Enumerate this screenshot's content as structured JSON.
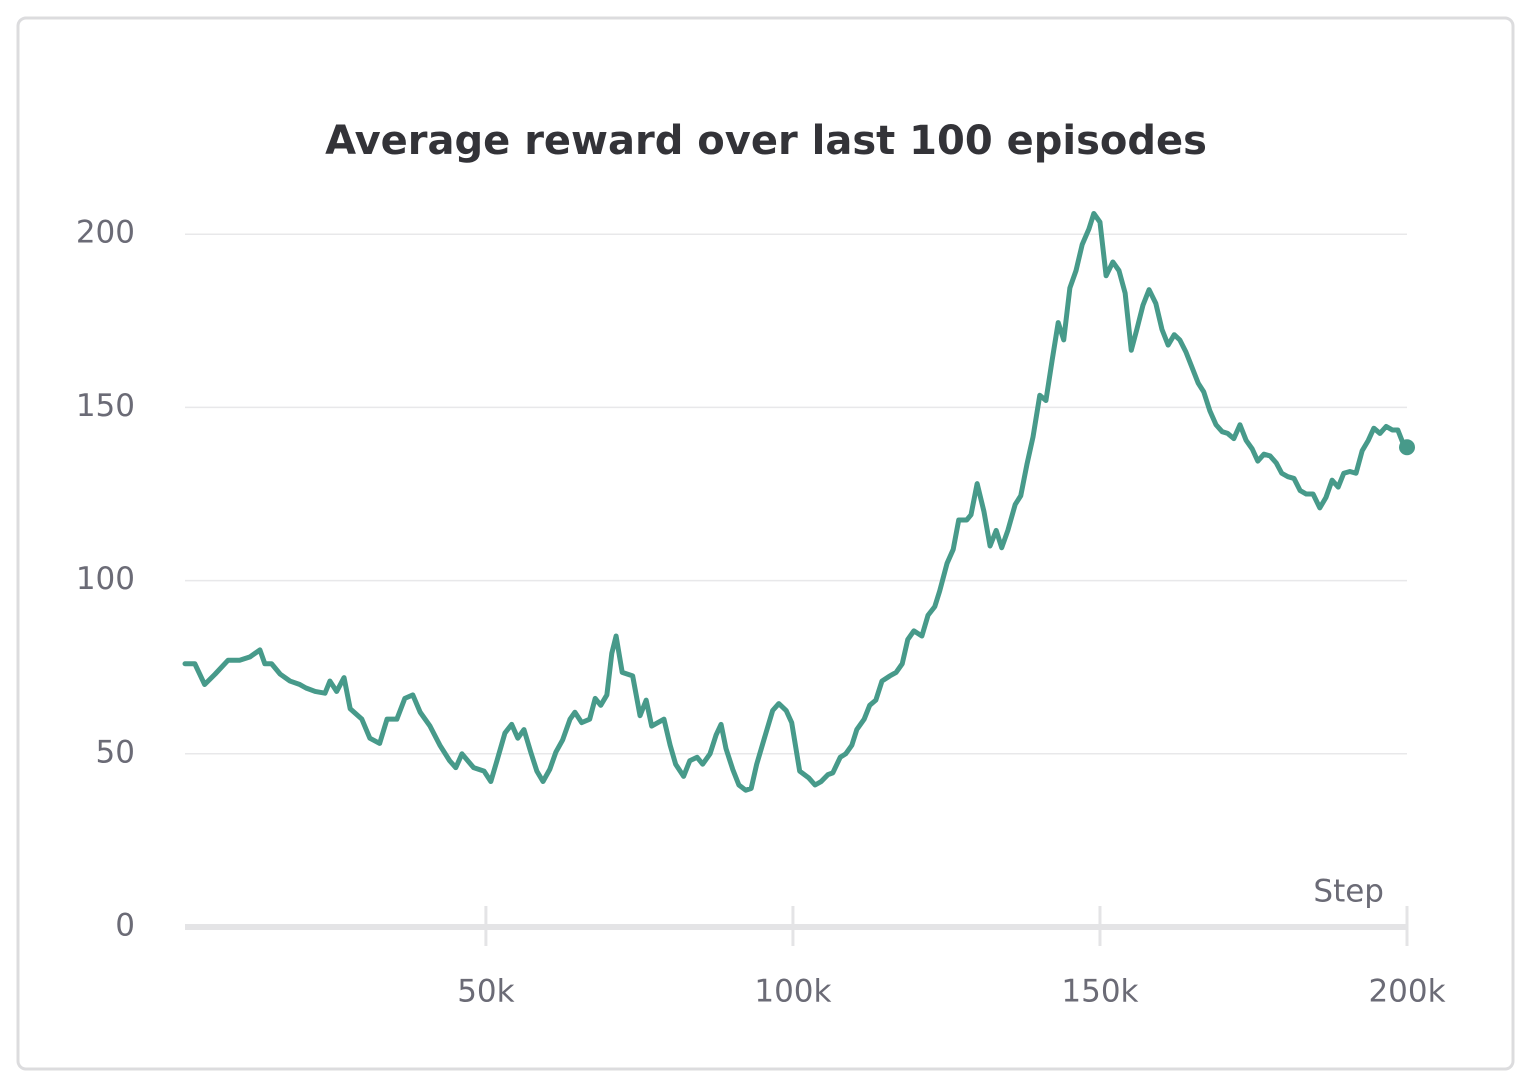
{
  "chart_data": {
    "type": "line",
    "title": "Average reward over last 100 episodes",
    "x_label": "Step",
    "color": "#479a8a",
    "grid": true,
    "xlim": [
      1000,
      200000
    ],
    "xticks": [
      {
        "value": 50000,
        "label": "50k"
      },
      {
        "value": 100000,
        "label": "100k"
      },
      {
        "value": 150000,
        "label": "150k"
      },
      {
        "value": 200000,
        "label": "200k"
      }
    ],
    "ylim": [
      0,
      207
    ],
    "yticks": [
      0,
      50,
      100,
      150,
      200
    ],
    "x": [
      1000,
      2600,
      4200,
      5900,
      8000,
      9900,
      11600,
      13200,
      14000,
      15100,
      16500,
      18100,
      19700,
      20700,
      22200,
      23800,
      24600,
      25700,
      26900,
      27900,
      29800,
      31100,
      32700,
      33900,
      35500,
      36800,
      38100,
      39300,
      40900,
      42500,
      44100,
      45100,
      46100,
      48000,
      49700,
      50800,
      51800,
      53100,
      54200,
      55200,
      56200,
      57300,
      58300,
      59300,
      60400,
      61400,
      62500,
      63700,
      64500,
      65600,
      66900,
      67800,
      68700,
      69700,
      70500,
      71200,
      72200,
      73900,
      75100,
      76100,
      77000,
      79000,
      80000,
      80900,
      82200,
      83200,
      84400,
      85300,
      86500,
      87500,
      88300,
      89100,
      90200,
      91200,
      92300,
      93200,
      94100,
      95600,
      96700,
      97700,
      98900,
      99800,
      101100,
      102600,
      103600,
      104600,
      105700,
      106500,
      107700,
      108600,
      109600,
      110400,
      111600,
      112500,
      113500,
      114500,
      115800,
      116800,
      117800,
      118700,
      119700,
      121000,
      122000,
      123100,
      123900,
      125100,
      126100,
      127000,
      128300,
      129000,
      130000,
      131100,
      132100,
      133100,
      134000,
      135000,
      136200,
      137100,
      138100,
      139100,
      140200,
      141200,
      142200,
      143200,
      144100,
      145100,
      146100,
      147100,
      148200,
      149000,
      150000,
      151000,
      152100,
      153100,
      154100,
      155100,
      156000,
      157000,
      158000,
      159100,
      160100,
      161100,
      162100,
      163000,
      164000,
      165000,
      166000,
      166900,
      167900,
      168900,
      169900,
      170800,
      171800,
      172800,
      173800,
      174800,
      175700,
      176700,
      177700,
      178700,
      179600,
      180600,
      181600,
      182600,
      183600,
      184700,
      185800,
      186800,
      187800,
      188800,
      189700,
      190700,
      191700,
      192700,
      193700,
      194600,
      195600,
      196600,
      197600,
      198500,
      199500,
      200000
    ],
    "values": [
      76,
      76,
      70,
      73,
      77,
      77,
      78,
      80,
      76,
      76,
      73,
      71,
      70,
      69,
      68,
      67.5,
      71,
      68,
      72,
      63,
      60,
      54.5,
      53,
      60,
      60,
      66,
      67,
      62,
      58,
      52.5,
      48,
      46,
      50,
      46,
      45,
      42,
      48,
      56,
      58.5,
      54.5,
      57,
      50.5,
      45,
      42,
      45.5,
      50.5,
      54,
      60,
      62,
      59,
      60,
      66,
      64,
      67,
      79,
      84,
      73.5,
      72.5,
      61,
      65.5,
      58,
      60,
      52.5,
      47,
      43.5,
      48,
      49,
      47,
      50,
      55.5,
      58.5,
      51.5,
      45.5,
      41,
      39.5,
      40,
      47,
      56,
      62.5,
      64.5,
      62.5,
      59,
      45,
      43,
      41,
      42,
      44,
      44.5,
      49,
      50,
      52.5,
      57,
      60,
      64,
      65.5,
      71,
      72.5,
      73.5,
      76,
      83,
      85.5,
      84,
      90,
      92.5,
      97,
      105,
      109,
      117.5,
      117.5,
      119,
      128,
      120,
      110,
      114.5,
      109.5,
      114.5,
      122,
      124.5,
      133.5,
      141.5,
      153.5,
      152,
      163.5,
      174.5,
      169.5,
      184.5,
      189.5,
      197,
      201.5,
      206,
      203.5,
      188,
      192,
      189.5,
      183,
      166.5,
      172.5,
      179.5,
      184,
      180,
      172.5,
      168,
      171,
      169.5,
      166,
      161.5,
      157,
      154.5,
      149,
      145,
      143,
      142.5,
      141,
      145,
      140.5,
      138,
      134.5,
      136.5,
      136,
      134,
      131,
      130,
      129.5,
      126,
      125,
      125,
      121,
      124,
      129,
      127,
      131,
      131.5,
      131,
      137.5,
      140.5,
      144,
      142.5,
      144.5,
      143.5,
      143.5,
      139,
      138.5
    ]
  }
}
